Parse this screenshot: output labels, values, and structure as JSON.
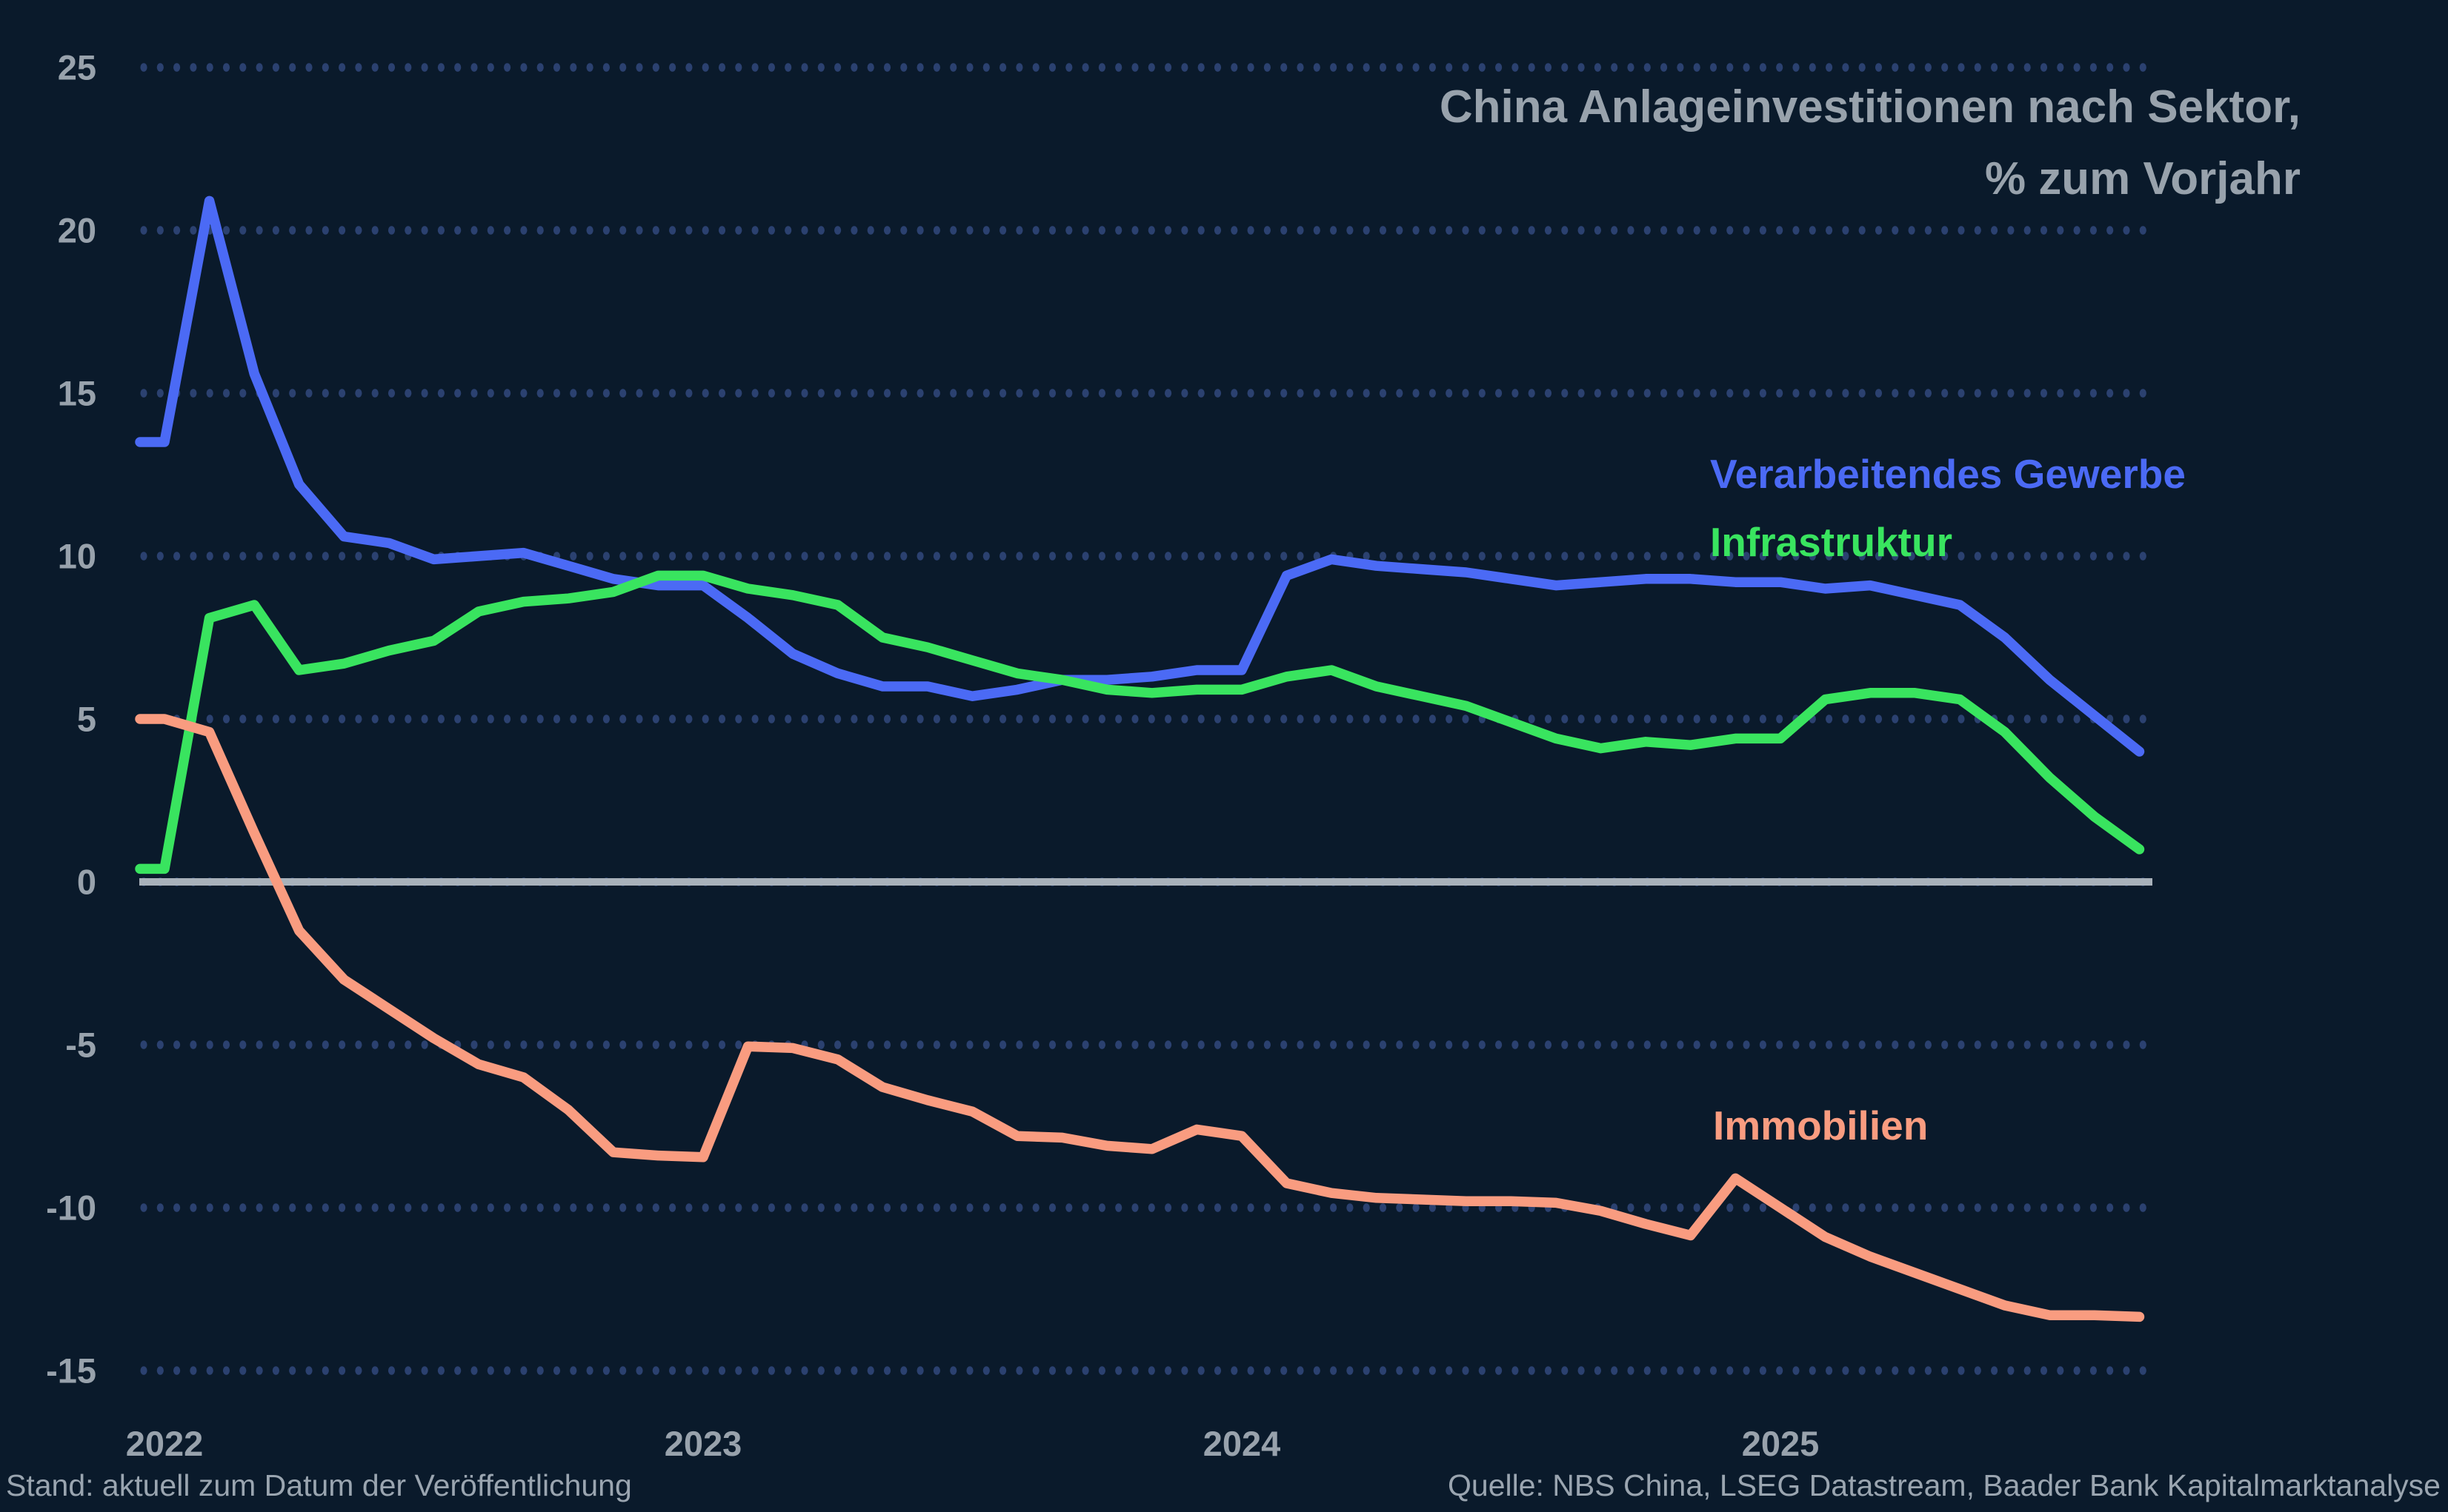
{
  "title": {
    "line1": "China Anlageinvestitionen nach Sektor,",
    "line2": "% zum Vorjahr"
  },
  "legend": {
    "manufacturing": "Verarbeitendes Gewerbe",
    "infrastructure": "Infrastruktur",
    "realestate": "Immobilien"
  },
  "footer": {
    "left": "Stand: aktuell zum Datum der Veröffentlichung",
    "right": "Quelle: NBS China, LSEG Datastream, Baader Bank Kapitalmarktanalyse"
  },
  "colors": {
    "background": "#0a1a2b",
    "grid_dots": "#2b4170",
    "zero_line": "#a8b1ba",
    "manufacturing": "#4b6af5",
    "infrastructure": "#39e45f",
    "realestate": "#f99c80",
    "axis_text": "#98a2ac"
  },
  "chart_data": {
    "type": "line",
    "title": "China Anlageinvestitionen nach Sektor, % zum Vorjahr",
    "x": [
      "2021-12",
      "2022-01",
      "2022-02",
      "2022-03",
      "2022-04",
      "2022-05",
      "2022-06",
      "2022-07",
      "2022-08",
      "2022-09",
      "2022-10",
      "2022-11",
      "2022-12",
      "2023-01",
      "2023-02",
      "2023-03",
      "2023-04",
      "2023-05",
      "2023-06",
      "2023-07",
      "2023-08",
      "2023-09",
      "2023-10",
      "2023-11",
      "2023-12",
      "2024-01",
      "2024-02",
      "2024-03",
      "2024-04",
      "2024-05",
      "2024-06",
      "2024-07",
      "2024-08",
      "2024-09",
      "2024-10",
      "2024-11",
      "2024-12",
      "2025-01",
      "2025-02",
      "2025-03",
      "2025-04",
      "2025-05",
      "2025-06",
      "2025-07",
      "2025-08",
      "2025-09"
    ],
    "series": [
      {
        "name": "Verarbeitendes Gewerbe",
        "color_key": "manufacturing",
        "values": [
          13.5,
          13.5,
          20.9,
          15.6,
          12.2,
          10.6,
          10.4,
          9.9,
          10.0,
          10.1,
          9.7,
          9.3,
          9.1,
          9.1,
          8.1,
          7.0,
          6.4,
          6.0,
          6.0,
          5.7,
          5.9,
          6.2,
          6.2,
          6.3,
          6.5,
          6.5,
          9.4,
          9.9,
          9.7,
          9.6,
          9.5,
          9.3,
          9.1,
          9.2,
          9.3,
          9.3,
          9.2,
          9.2,
          9.0,
          9.1,
          8.8,
          8.5,
          7.5,
          6.2,
          5.1,
          4.0
        ]
      },
      {
        "name": "Infrastruktur",
        "color_key": "infrastructure",
        "values": [
          0.4,
          0.4,
          8.1,
          8.5,
          6.5,
          6.7,
          7.1,
          7.4,
          8.3,
          8.6,
          8.7,
          8.9,
          9.4,
          9.4,
          9.0,
          8.8,
          8.5,
          7.5,
          7.2,
          6.8,
          6.4,
          6.2,
          5.9,
          5.8,
          5.9,
          5.9,
          6.3,
          6.5,
          6.0,
          5.7,
          5.4,
          4.9,
          4.4,
          4.1,
          4.3,
          4.2,
          4.4,
          4.4,
          5.6,
          5.8,
          5.8,
          5.6,
          4.6,
          3.2,
          2.0,
          1.0
        ]
      },
      {
        "name": "Immobilien",
        "color_key": "realestate",
        "values": [
          5.0,
          5.0,
          4.6,
          1.5,
          -1.5,
          -3.0,
          -3.9,
          -4.8,
          -5.6,
          -6.0,
          -7.0,
          -8.3,
          -8.4,
          -8.45,
          -5.05,
          -5.1,
          -5.45,
          -6.3,
          -6.7,
          -7.05,
          -7.8,
          -7.85,
          -8.1,
          -8.2,
          -7.6,
          -7.8,
          -9.25,
          -9.55,
          -9.7,
          -9.75,
          -9.8,
          -9.8,
          -9.85,
          -10.1,
          -10.5,
          -10.85,
          -9.1,
          -10.0,
          -10.9,
          -11.5,
          -12.0,
          -12.5,
          -13.0,
          -13.3,
          -13.3,
          -13.35
        ]
      }
    ],
    "ylim": [
      -15,
      25
    ],
    "yticks": [
      25,
      20,
      15,
      10,
      5,
      0,
      -5,
      -10,
      -15
    ],
    "xticks": [
      {
        "label": "2022",
        "month_index": 1
      },
      {
        "label": "2023",
        "month_index": 13
      },
      {
        "label": "2024",
        "month_index": 25
      },
      {
        "label": "2025",
        "month_index": 37
      }
    ],
    "grid": "horizontal dotted rows at every 5 units, solid grey line at 0",
    "legend_position": "labels placed inside plot, colored like series"
  }
}
